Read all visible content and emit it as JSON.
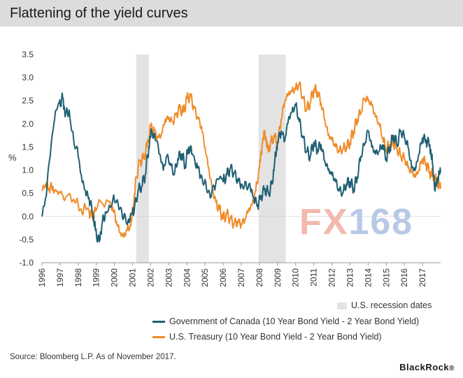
{
  "title": "Flattening of the yield curves",
  "source": "Source: Bloomberg L.P. As of November 2017.",
  "brand": "BlackRock",
  "brand_suffix": "®",
  "watermark": {
    "left": "FX",
    "right": "168"
  },
  "colors": {
    "canada": "#1f5f73",
    "treasury": "#f08c2a",
    "recession": "#e3e3e3",
    "axis": "#999999"
  },
  "legend": {
    "recession": "U.S. recession dates",
    "canada": "Government of Canada (10 Year Bond Yield - 2 Year Bond Yield)",
    "treasury": "U.S. Treasury (10 Year Bond Yield - 2 Year Bond Yield)"
  },
  "chart_data": {
    "type": "line",
    "title": "Flattening of the yield curves",
    "ylabel": "%",
    "xlabel": "",
    "ylim": [
      -1.0,
      3.5
    ],
    "yticks": [
      -1.0,
      -0.5,
      0.0,
      0.5,
      1.0,
      1.5,
      2.0,
      2.5,
      3.0,
      3.5
    ],
    "ytick_labels": [
      "-1.0",
      "-0.5",
      "0.0",
      "0.5",
      "1.0",
      "1.5",
      "2.0",
      "2.5",
      "3.0",
      "3.5"
    ],
    "xlim": [
      1996.0,
      2018.0
    ],
    "xticks": [
      1996,
      1997,
      1998,
      1999,
      2000,
      2001,
      2002,
      2003,
      2004,
      2005,
      2006,
      2007,
      2008,
      2009,
      2010,
      2011,
      2012,
      2013,
      2014,
      2015,
      2016,
      2017
    ],
    "xtick_labels": [
      "1996",
      "1997",
      "1998",
      "1999",
      "2000",
      "2001",
      "2002",
      "2003",
      "2004",
      "2005",
      "2006",
      "2007",
      "2008",
      "2009",
      "2010",
      "2011",
      "2012",
      "2013",
      "2014",
      "2015",
      "2016",
      "2017"
    ],
    "recessions": [
      [
        2001.2,
        2001.9
      ],
      [
        2007.95,
        2009.45
      ]
    ],
    "series": [
      {
        "name": "Government of Canada (10 Year Bond Yield - 2 Year Bond Yield)",
        "key": "canada",
        "points": [
          [
            1996.0,
            0.0
          ],
          [
            1996.2,
            0.4
          ],
          [
            1996.45,
            1.3
          ],
          [
            1996.7,
            2.1
          ],
          [
            1996.95,
            2.45
          ],
          [
            1997.15,
            2.55
          ],
          [
            1997.3,
            2.2
          ],
          [
            1997.5,
            2.3
          ],
          [
            1997.75,
            1.65
          ],
          [
            1998.0,
            1.3
          ],
          [
            1998.2,
            0.8
          ],
          [
            1998.4,
            0.55
          ],
          [
            1998.6,
            0.4
          ],
          [
            1998.8,
            0.1
          ],
          [
            1998.95,
            -0.3
          ],
          [
            1999.15,
            -0.55
          ],
          [
            1999.3,
            -0.2
          ],
          [
            1999.5,
            0.1
          ],
          [
            1999.75,
            0.2
          ],
          [
            2000.0,
            0.35
          ],
          [
            2000.25,
            0.15
          ],
          [
            2000.5,
            -0.05
          ],
          [
            2000.75,
            -0.1
          ],
          [
            2000.95,
            0.05
          ],
          [
            2001.1,
            0.15
          ],
          [
            2001.3,
            0.55
          ],
          [
            2001.5,
            0.65
          ],
          [
            2001.7,
            0.9
          ],
          [
            2001.9,
            1.5
          ],
          [
            2002.05,
            1.85
          ],
          [
            2002.25,
            1.65
          ],
          [
            2002.5,
            1.35
          ],
          [
            2002.7,
            1.0
          ],
          [
            2002.9,
            1.3
          ],
          [
            2003.1,
            1.1
          ],
          [
            2003.3,
            0.9
          ],
          [
            2003.5,
            1.25
          ],
          [
            2003.7,
            1.35
          ],
          [
            2003.9,
            1.1
          ],
          [
            2004.1,
            1.5
          ],
          [
            2004.3,
            1.35
          ],
          [
            2004.55,
            1.15
          ],
          [
            2004.75,
            0.85
          ],
          [
            2005.0,
            0.8
          ],
          [
            2005.25,
            0.5
          ],
          [
            2005.5,
            0.65
          ],
          [
            2005.75,
            0.8
          ],
          [
            2006.0,
            0.75
          ],
          [
            2006.2,
            0.9
          ],
          [
            2006.4,
            1.05
          ],
          [
            2006.6,
            0.95
          ],
          [
            2006.8,
            0.8
          ],
          [
            2007.0,
            0.7
          ],
          [
            2007.25,
            0.75
          ],
          [
            2007.5,
            0.6
          ],
          [
            2007.7,
            0.4
          ],
          [
            2007.9,
            0.25
          ],
          [
            2008.1,
            0.45
          ],
          [
            2008.3,
            0.6
          ],
          [
            2008.5,
            0.5
          ],
          [
            2008.7,
            0.7
          ],
          [
            2008.85,
            1.2
          ],
          [
            2009.0,
            1.6
          ],
          [
            2009.2,
            1.85
          ],
          [
            2009.4,
            1.65
          ],
          [
            2009.6,
            2.1
          ],
          [
            2009.8,
            2.25
          ],
          [
            2010.0,
            2.4
          ],
          [
            2010.2,
            2.05
          ],
          [
            2010.4,
            1.7
          ],
          [
            2010.6,
            1.4
          ],
          [
            2010.8,
            1.3
          ],
          [
            2011.0,
            1.6
          ],
          [
            2011.2,
            1.45
          ],
          [
            2011.4,
            1.55
          ],
          [
            2011.6,
            1.2
          ],
          [
            2011.8,
            1.0
          ],
          [
            2012.0,
            0.9
          ],
          [
            2012.2,
            0.75
          ],
          [
            2012.4,
            0.55
          ],
          [
            2012.6,
            0.5
          ],
          [
            2012.8,
            0.7
          ],
          [
            2013.0,
            0.75
          ],
          [
            2013.2,
            0.6
          ],
          [
            2013.4,
            0.85
          ],
          [
            2013.6,
            1.3
          ],
          [
            2013.8,
            1.55
          ],
          [
            2014.0,
            1.85
          ],
          [
            2014.2,
            1.5
          ],
          [
            2014.4,
            1.35
          ],
          [
            2014.6,
            1.4
          ],
          [
            2014.8,
            1.55
          ],
          [
            2015.0,
            1.25
          ],
          [
            2015.2,
            1.5
          ],
          [
            2015.4,
            1.75
          ],
          [
            2015.6,
            1.55
          ],
          [
            2015.8,
            1.85
          ],
          [
            2016.0,
            1.7
          ],
          [
            2016.2,
            1.5
          ],
          [
            2016.4,
            1.05
          ],
          [
            2016.6,
            1.0
          ],
          [
            2016.8,
            1.35
          ],
          [
            2017.0,
            1.7
          ],
          [
            2017.2,
            1.65
          ],
          [
            2017.4,
            1.55
          ],
          [
            2017.55,
            1.15
          ],
          [
            2017.7,
            0.55
          ],
          [
            2017.85,
            0.85
          ],
          [
            2018.0,
            0.95
          ]
        ]
      },
      {
        "name": "U.S. Treasury (10 Year Bond Yield - 2 Year Bond Yield)",
        "key": "treasury",
        "points": [
          [
            1996.0,
            0.55
          ],
          [
            1996.2,
            0.7
          ],
          [
            1996.4,
            0.6
          ],
          [
            1996.6,
            0.65
          ],
          [
            1996.85,
            0.55
          ],
          [
            1997.1,
            0.5
          ],
          [
            1997.4,
            0.45
          ],
          [
            1997.7,
            0.35
          ],
          [
            1998.0,
            0.25
          ],
          [
            1998.3,
            0.15
          ],
          [
            1998.6,
            0.1
          ],
          [
            1998.8,
            0.0
          ],
          [
            1999.0,
            0.15
          ],
          [
            1999.3,
            0.3
          ],
          [
            1999.6,
            0.35
          ],
          [
            1999.9,
            0.2
          ],
          [
            2000.1,
            -0.1
          ],
          [
            2000.3,
            -0.35
          ],
          [
            2000.5,
            -0.45
          ],
          [
            2000.7,
            -0.3
          ],
          [
            2000.9,
            -0.2
          ],
          [
            2001.05,
            0.25
          ],
          [
            2001.2,
            0.85
          ],
          [
            2001.4,
            1.2
          ],
          [
            2001.6,
            1.25
          ],
          [
            2001.8,
            1.5
          ],
          [
            2002.0,
            1.95
          ],
          [
            2002.2,
            1.85
          ],
          [
            2002.4,
            1.7
          ],
          [
            2002.6,
            1.8
          ],
          [
            2002.8,
            2.1
          ],
          [
            2003.0,
            2.15
          ],
          [
            2003.2,
            2.05
          ],
          [
            2003.4,
            2.2
          ],
          [
            2003.6,
            2.35
          ],
          [
            2003.8,
            2.25
          ],
          [
            2004.0,
            2.55
          ],
          [
            2004.2,
            2.6
          ],
          [
            2004.4,
            2.35
          ],
          [
            2004.6,
            2.15
          ],
          [
            2004.8,
            1.95
          ],
          [
            2005.0,
            1.5
          ],
          [
            2005.2,
            1.05
          ],
          [
            2005.4,
            0.6
          ],
          [
            2005.6,
            0.3
          ],
          [
            2005.8,
            0.15
          ],
          [
            2006.0,
            -0.05
          ],
          [
            2006.2,
            0.05
          ],
          [
            2006.4,
            -0.05
          ],
          [
            2006.6,
            -0.15
          ],
          [
            2006.8,
            -0.1
          ],
          [
            2007.0,
            -0.15
          ],
          [
            2007.2,
            -0.05
          ],
          [
            2007.4,
            0.15
          ],
          [
            2007.6,
            0.25
          ],
          [
            2007.8,
            0.55
          ],
          [
            2008.0,
            1.05
          ],
          [
            2008.15,
            1.55
          ],
          [
            2008.3,
            1.85
          ],
          [
            2008.45,
            1.45
          ],
          [
            2008.6,
            1.55
          ],
          [
            2008.8,
            1.75
          ],
          [
            2009.0,
            1.6
          ],
          [
            2009.2,
            2.1
          ],
          [
            2009.4,
            2.5
          ],
          [
            2009.6,
            2.65
          ],
          [
            2009.8,
            2.7
          ],
          [
            2010.0,
            2.75
          ],
          [
            2010.2,
            2.85
          ],
          [
            2010.4,
            2.55
          ],
          [
            2010.6,
            2.3
          ],
          [
            2010.8,
            2.45
          ],
          [
            2011.0,
            2.75
          ],
          [
            2011.2,
            2.7
          ],
          [
            2011.4,
            2.45
          ],
          [
            2011.6,
            2.1
          ],
          [
            2011.8,
            1.75
          ],
          [
            2012.0,
            1.65
          ],
          [
            2012.2,
            1.5
          ],
          [
            2012.4,
            1.4
          ],
          [
            2012.6,
            1.45
          ],
          [
            2012.8,
            1.5
          ],
          [
            2013.0,
            1.6
          ],
          [
            2013.2,
            1.85
          ],
          [
            2013.4,
            2.1
          ],
          [
            2013.6,
            2.25
          ],
          [
            2013.8,
            2.55
          ],
          [
            2014.0,
            2.5
          ],
          [
            2014.2,
            2.4
          ],
          [
            2014.4,
            2.15
          ],
          [
            2014.6,
            2.0
          ],
          [
            2014.8,
            1.7
          ],
          [
            2015.0,
            1.45
          ],
          [
            2015.2,
            1.55
          ],
          [
            2015.4,
            1.6
          ],
          [
            2015.6,
            1.45
          ],
          [
            2015.8,
            1.3
          ],
          [
            2016.0,
            1.25
          ],
          [
            2016.2,
            1.05
          ],
          [
            2016.4,
            0.95
          ],
          [
            2016.6,
            0.85
          ],
          [
            2016.8,
            1.0
          ],
          [
            2017.0,
            1.25
          ],
          [
            2017.2,
            1.15
          ],
          [
            2017.4,
            0.95
          ],
          [
            2017.55,
            0.9
          ],
          [
            2017.7,
            0.8
          ],
          [
            2017.85,
            0.7
          ],
          [
            2018.0,
            0.6
          ]
        ]
      }
    ],
    "legend_position": "bottom-right"
  }
}
